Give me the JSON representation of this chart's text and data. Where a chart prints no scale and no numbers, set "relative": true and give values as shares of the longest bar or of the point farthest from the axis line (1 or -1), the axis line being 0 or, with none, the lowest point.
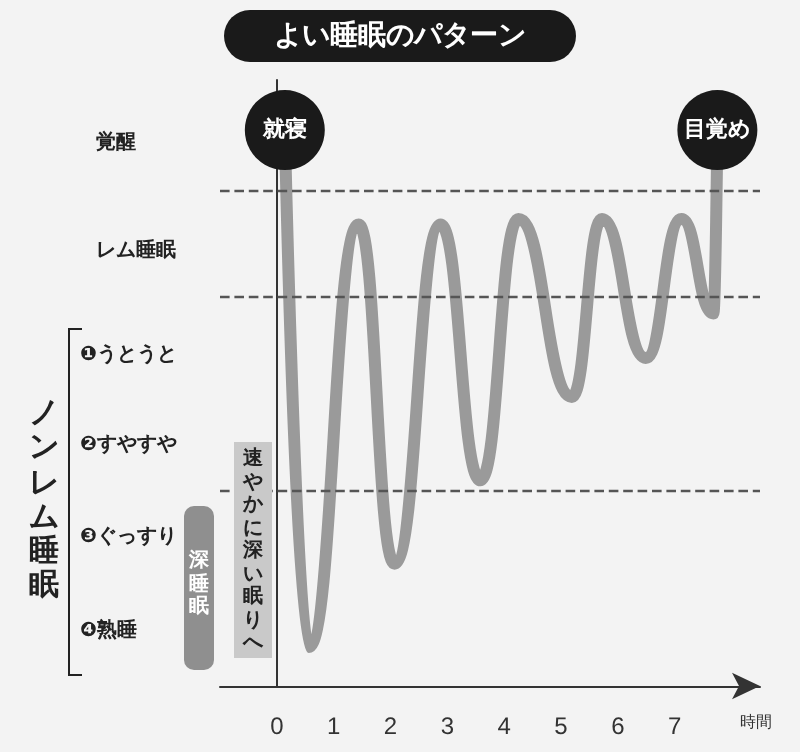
{
  "chart_data": {
    "type": "line",
    "title": "よい睡眠のパターン",
    "xlabel": "時間",
    "relative": true,
    "x": [
      0.14,
      0.56,
      1.44,
      2.07,
      2.88,
      3.58,
      4.25,
      5.19,
      5.72,
      6.49,
      7.12,
      7.68,
      7.75
    ],
    "series": [
      {
        "color": "#9a9a9a",
        "values": [
          1,
          0.07,
          0.83,
          0.22,
          0.83,
          0.37,
          0.84,
          0.52,
          0.84,
          0.59,
          0.84,
          0.67,
          1
        ]
      }
    ],
    "xlim": [
      -1,
      8.5
    ],
    "xticks": [
      0,
      1,
      2,
      3,
      4,
      5,
      6,
      7
    ],
    "ref_lines": [
      {
        "axis": "y",
        "value": 0.89,
        "color": "#555555",
        "line_style": "dashed"
      },
      {
        "axis": "y",
        "value": 0.7,
        "color": "#555555",
        "line_style": "dashed"
      },
      {
        "axis": "y",
        "value": 0.35,
        "color": "#555555",
        "line_style": "dashed"
      }
    ],
    "annotations": [
      {
        "text": "就寝",
        "x": 0.14,
        "y": 1
      },
      {
        "text": "目覚め",
        "x": 7.75,
        "y": 1
      },
      "覚醒",
      "レム睡眠",
      "❶うとうと",
      "❷すやすや",
      "❸ぐっすり",
      "❹熟睡",
      "速やかに深い眠りへ",
      "深睡眠",
      "ノンレム睡眠"
    ],
    "marker": "none",
    "line_style": "solid"
  }
}
